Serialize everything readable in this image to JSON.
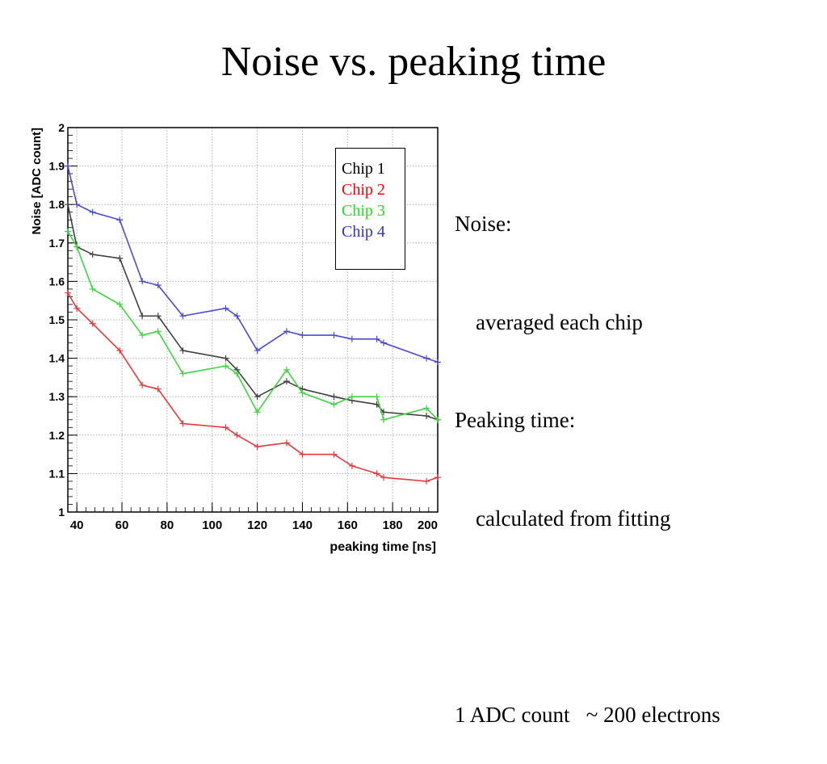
{
  "title": "Noise vs. peaking time",
  "notes": {
    "noise_heading": "Noise:",
    "noise_detail": "averaged each chip",
    "peaking_heading": "Peaking time:",
    "peaking_detail": "calculated from fitting",
    "conversion": "1 ADC count   ~ 200 electrons"
  },
  "chart_data": {
    "type": "line",
    "xlabel": "peaking time [ns]",
    "ylabel": "Noise [ADC count]",
    "xlim": [
      36,
      200
    ],
    "ylim": [
      1,
      2
    ],
    "x_ticks": [
      40,
      60,
      80,
      100,
      120,
      140,
      160,
      180,
      200
    ],
    "y_ticks": [
      1,
      1.1,
      1.2,
      1.3,
      1.4,
      1.5,
      1.6,
      1.7,
      1.8,
      1.9,
      2
    ],
    "y_tick_labels": [
      "1",
      "1.1",
      "1.2",
      "1.3",
      "1.4",
      "1.5",
      "1.6",
      "1.7",
      "1.8",
      "1.9",
      "2"
    ],
    "grid": true,
    "legend_position": "top-right",
    "series": [
      {
        "name": "Chip 1",
        "color": "#404040",
        "x": [
          36,
          40,
          47,
          59,
          69,
          76,
          87,
          106,
          111,
          120,
          133,
          140,
          154,
          162,
          173,
          176,
          195,
          200
        ],
        "y": [
          1.8,
          1.69,
          1.67,
          1.66,
          1.51,
          1.51,
          1.42,
          1.4,
          1.37,
          1.3,
          1.34,
          1.32,
          1.3,
          1.29,
          1.28,
          1.26,
          1.25,
          1.24
        ]
      },
      {
        "name": "Chip 2",
        "color": "#e8383d",
        "x": [
          36,
          40,
          47,
          59,
          69,
          76,
          87,
          106,
          111,
          120,
          133,
          140,
          154,
          162,
          173,
          176,
          195,
          200
        ],
        "y": [
          1.57,
          1.53,
          1.49,
          1.42,
          1.33,
          1.32,
          1.23,
          1.22,
          1.2,
          1.17,
          1.18,
          1.15,
          1.15,
          1.12,
          1.1,
          1.09,
          1.08,
          1.09
        ]
      },
      {
        "name": "Chip 3",
        "color": "#3fd43f",
        "x": [
          36,
          40,
          47,
          59,
          69,
          76,
          87,
          106,
          111,
          120,
          133,
          140,
          154,
          162,
          173,
          176,
          195,
          200
        ],
        "y": [
          1.73,
          1.69,
          1.58,
          1.54,
          1.46,
          1.47,
          1.36,
          1.38,
          1.36,
          1.26,
          1.37,
          1.31,
          1.28,
          1.3,
          1.3,
          1.24,
          1.27,
          1.24
        ]
      },
      {
        "name": "Chip 4",
        "color": "#4a4ad6",
        "x": [
          36,
          40,
          47,
          59,
          69,
          76,
          87,
          106,
          111,
          120,
          133,
          140,
          154,
          162,
          173,
          176,
          195,
          200
        ],
        "y": [
          1.9,
          1.8,
          1.78,
          1.76,
          1.6,
          1.59,
          1.51,
          1.53,
          1.51,
          1.42,
          1.47,
          1.46,
          1.46,
          1.45,
          1.45,
          1.44,
          1.4,
          1.39
        ]
      }
    ]
  }
}
